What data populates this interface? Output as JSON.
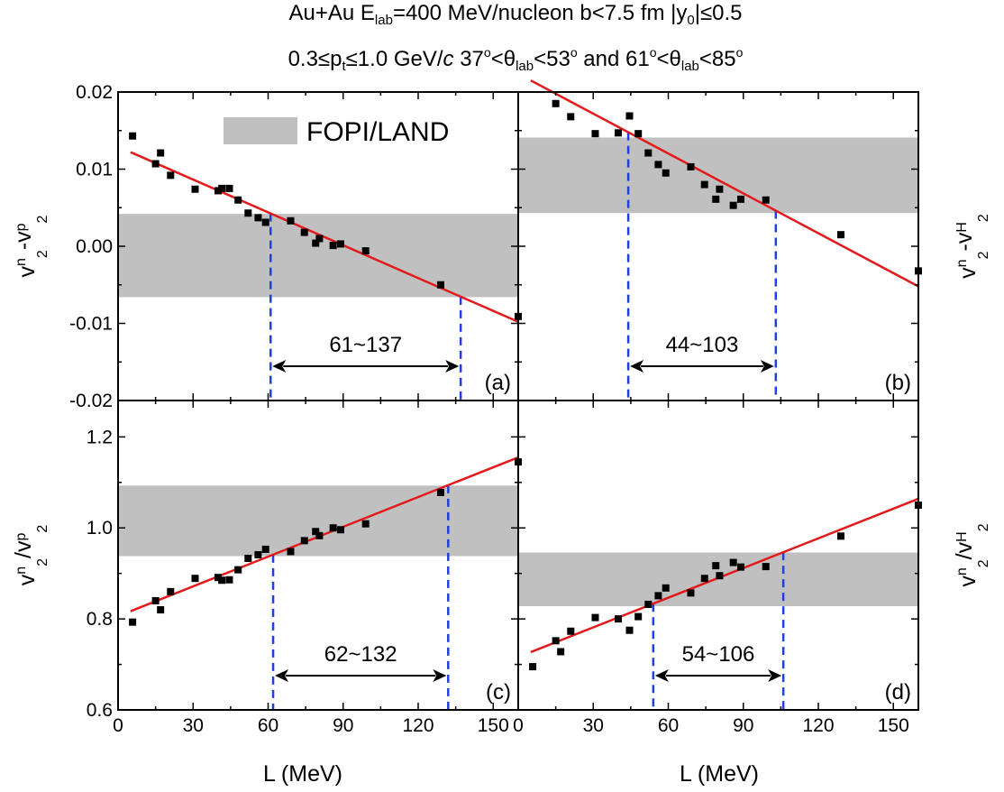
{
  "title": {
    "line1": {
      "prefix": "Au+Au E",
      "sub": "lab",
      "rest": "=400 MeV/nucleon  b<7.5 fm  |y",
      "sub2": "0",
      "rest2": "|≤0.5"
    },
    "line2": {
      "a": "0.3≤p",
      "sub_t": "t",
      "b": "≤1.0 GeV/",
      "c_italic": "c",
      "d": "  37",
      "deg": "o",
      "e": "<θ",
      "sub_lab": "lab",
      "f": "<53",
      "g": " and 61",
      "h": "<θ",
      "i": "<85"
    }
  },
  "legend": {
    "label": "FOPI/LAND",
    "color": "#c0c0c0"
  },
  "colors": {
    "fit_line": "#e31a1c",
    "bound_lines": "#1f3fdf",
    "band": "#c0c0c0",
    "points": "#000000"
  },
  "xaxis": {
    "label": "L (MeV)",
    "ticks": [
      "0",
      "30",
      "60",
      "90",
      "120",
      "150"
    ]
  },
  "chart_data": [
    {
      "type": "scatter",
      "panel": "(a)",
      "ylabel": {
        "v": "v",
        "sup1": "n",
        "sub1": "2",
        "mid": "-v",
        "sup2": "p",
        "sub2": "2"
      },
      "ylabel_side": "left",
      "xlim": [
        0,
        160
      ],
      "ylim": [
        -0.02,
        0.02
      ],
      "yticks": [
        "-0.02",
        "-0.01",
        "0.00",
        "0.01",
        "0.02"
      ],
      "ytick_values": [
        -0.02,
        -0.01,
        0.0,
        0.01,
        0.02
      ],
      "band": [
        -0.0066,
        0.0042
      ],
      "fit": {
        "x": [
          5,
          160
        ],
        "y": [
          0.0122,
          -0.0098
        ]
      },
      "bounds": [
        61,
        137
      ],
      "range_label": "61~137",
      "points": {
        "x": [
          5.8,
          15,
          17,
          21,
          30.8,
          40,
          41.5,
          44.5,
          48,
          52,
          56,
          59,
          69,
          74.5,
          79,
          80.5,
          86,
          89,
          99,
          129,
          160
        ],
        "y": [
          0.0143,
          0.0107,
          0.0121,
          0.0092,
          0.0074,
          0.0072,
          0.0075,
          0.0075,
          0.006,
          0.0043,
          0.0037,
          0.0031,
          0.0033,
          0.0018,
          0.0004,
          0.001,
          0.0001,
          0.0003,
          -0.0006,
          -0.005,
          -0.0091
        ]
      }
    },
    {
      "type": "scatter",
      "panel": "(b)",
      "ylabel": {
        "v": "v",
        "sup1": "n",
        "sub1": "2",
        "mid": "-v",
        "sup2": "H",
        "sub2": "2"
      },
      "ylabel_side": "right",
      "xlim": [
        0,
        160
      ],
      "ylim": [
        -0.02,
        0.02
      ],
      "band": [
        0.0043,
        0.0141
      ],
      "fit": {
        "x": [
          5,
          160
        ],
        "y": [
          0.0215,
          -0.0052
        ]
      },
      "bounds": [
        44,
        103
      ],
      "range_label": "44~103",
      "points": {
        "x": [
          15,
          21,
          30.8,
          40,
          44.5,
          48,
          52,
          56,
          59,
          69,
          74.5,
          79,
          80.5,
          86,
          89,
          99,
          129,
          160
        ],
        "y": [
          0.0185,
          0.0168,
          0.0146,
          0.0147,
          0.0169,
          0.0146,
          0.0121,
          0.0106,
          0.0095,
          0.0103,
          0.008,
          0.0061,
          0.0074,
          0.0053,
          0.0061,
          0.006,
          0.0015,
          -0.0032
        ]
      }
    },
    {
      "type": "scatter",
      "panel": "(c)",
      "ylabel": {
        "v": "v",
        "sup1": "n",
        "sub1": "2",
        "mid": "/v",
        "sup2": "p",
        "sub2": "2"
      },
      "ylabel_side": "left",
      "xlim": [
        0,
        160
      ],
      "ylim": [
        0.6,
        1.28
      ],
      "yticks": [
        "0.6",
        "0.8",
        "1.0",
        "1.2"
      ],
      "ytick_values": [
        0.6,
        0.8,
        1.0,
        1.2
      ],
      "band": [
        0.938,
        1.093
      ],
      "fit": {
        "x": [
          5,
          160
        ],
        "y": [
          0.817,
          1.155
        ]
      },
      "bounds": [
        62,
        132
      ],
      "range_label": "62~132",
      "points": {
        "x": [
          5.8,
          15,
          17,
          21,
          30.8,
          40,
          41.5,
          44.5,
          48,
          52,
          56,
          59,
          69,
          74.5,
          79,
          80.5,
          86,
          89,
          99,
          129,
          160
        ],
        "y": [
          0.793,
          0.84,
          0.82,
          0.86,
          0.889,
          0.891,
          0.885,
          0.886,
          0.908,
          0.933,
          0.941,
          0.953,
          0.948,
          0.972,
          0.992,
          0.983,
          1.0,
          0.996,
          1.009,
          1.078,
          1.145
        ]
      }
    },
    {
      "type": "scatter",
      "panel": "(d)",
      "ylabel": {
        "v": "v",
        "sup1": "n",
        "sub1": "2",
        "mid": "/v",
        "sup2": "H",
        "sub2": "2"
      },
      "ylabel_side": "right",
      "xlim": [
        0,
        160
      ],
      "ylim": [
        0.6,
        1.28
      ],
      "band": [
        0.828,
        0.946
      ],
      "fit": {
        "x": [
          5,
          160
        ],
        "y": [
          0.727,
          1.064
        ]
      },
      "bounds": [
        54,
        106
      ],
      "range_label": "54~106",
      "points": {
        "x": [
          5.8,
          15,
          17,
          21,
          30.8,
          40,
          44.5,
          48,
          52,
          56,
          59,
          69,
          74.5,
          79,
          80.5,
          86,
          89,
          99,
          129,
          160
        ],
        "y": [
          0.695,
          0.752,
          0.728,
          0.773,
          0.803,
          0.8,
          0.775,
          0.805,
          0.832,
          0.851,
          0.868,
          0.857,
          0.889,
          0.917,
          0.895,
          0.924,
          0.914,
          0.915,
          0.982,
          1.05
        ]
      }
    }
  ]
}
